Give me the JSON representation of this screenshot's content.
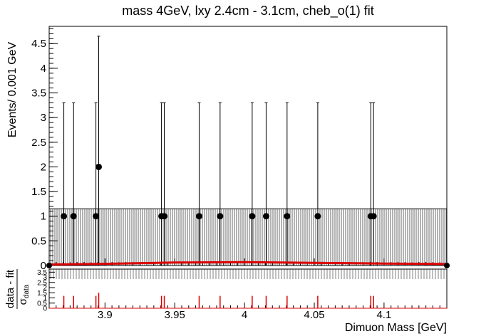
{
  "chart_data": [
    {
      "type": "scatter",
      "title": "mass 4GeV, lxy 2.4cm - 3.1cm, cheb_o(1) fit",
      "ylabel": "Events/ 0.001 GeV",
      "xlabel": "",
      "xlim": [
        3.86,
        4.145
      ],
      "ylim": [
        0,
        4.85
      ],
      "y_ticks": [
        "0",
        "0.5",
        "1",
        "1.5",
        "2",
        "2.5",
        "3",
        "3.5",
        "4",
        "4.5"
      ],
      "grid": false,
      "series": [
        {
          "kind": "data-points",
          "x": [
            3.8705,
            3.8775,
            3.8935,
            3.8955,
            3.9405,
            3.9425,
            3.9675,
            3.9825,
            4.0055,
            4.0155,
            4.0305,
            4.0525,
            4.0905,
            4.0925
          ],
          "y": [
            1,
            1,
            1,
            2,
            1,
            1,
            1,
            1,
            1,
            1,
            1,
            1,
            1,
            1
          ],
          "err_up": [
            2.3,
            2.3,
            2.3,
            2.65,
            2.3,
            2.3,
            2.3,
            2.3,
            2.3,
            2.3,
            2.3,
            2.3,
            2.3,
            2.3
          ]
        },
        {
          "kind": "fit-curve",
          "color": "#dd0000",
          "x": [
            3.86,
            3.9,
            3.95,
            4.0,
            4.05,
            4.1,
            4.145
          ],
          "y": [
            0.02,
            0.035,
            0.06,
            0.07,
            0.055,
            0.04,
            0.03
          ]
        }
      ]
    },
    {
      "type": "bar",
      "xlabel": "Dimuon Mass [GeV]",
      "ylabel_num": "data - fit",
      "ylabel_den": "σ",
      "ylabel_den_sub": "data",
      "xlim": [
        3.86,
        4.145
      ],
      "ylim": [
        0,
        3.8
      ],
      "y_ticks": [
        "0",
        "0.5",
        "1",
        "1.5",
        "2",
        "2.5",
        "3",
        "3.5"
      ],
      "x_ticks": [
        "3.9",
        "3.95",
        "4",
        "4.05",
        "4.1"
      ],
      "color": "#dd0000",
      "x": [
        3.8705,
        3.8775,
        3.8935,
        3.8955,
        3.9405,
        3.9425,
        3.9675,
        3.9825,
        4.0055,
        4.0155,
        4.0305,
        4.0525,
        4.0905,
        4.0925
      ],
      "values": [
        1.2,
        1.2,
        1.2,
        1.5,
        1.2,
        1.2,
        1.2,
        1.2,
        1.2,
        1.2,
        1.2,
        1.2,
        1.2,
        1.2
      ]
    }
  ]
}
